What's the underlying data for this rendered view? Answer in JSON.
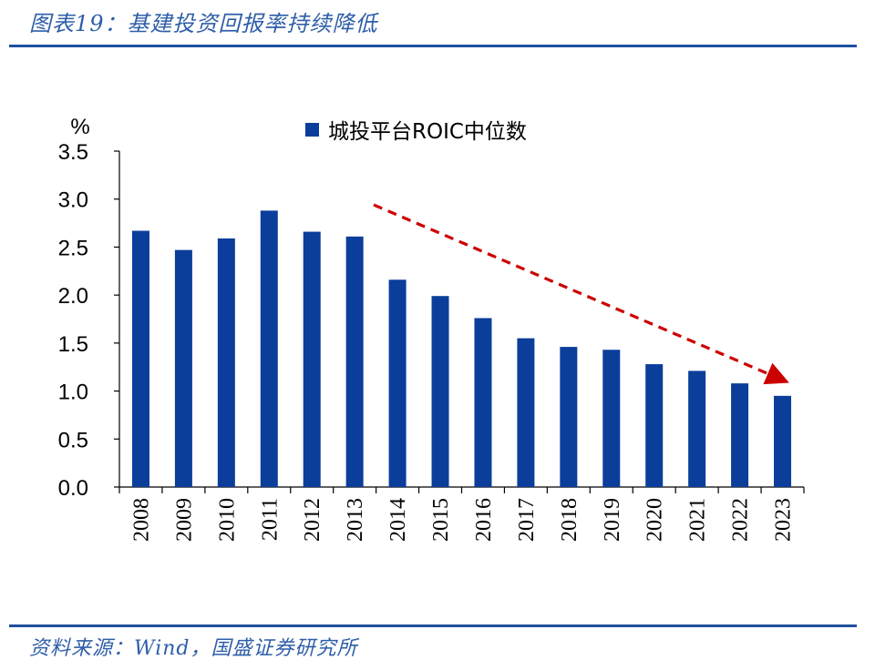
{
  "title": "图表19：基建投资回报率持续降低",
  "source": "资料来源：Wind，国盛证券研究所",
  "colors": {
    "bar": "#0b3d9b",
    "arrow": "#cc0000",
    "accent": "#2e5ea8"
  },
  "chart_data": {
    "type": "bar",
    "ylabel": "%",
    "ylim": [
      0,
      3.5
    ],
    "yticks": [
      "0.0",
      "0.5",
      "1.0",
      "1.5",
      "2.0",
      "2.5",
      "3.0",
      "3.5"
    ],
    "categories": [
      "2008",
      "2009",
      "2010",
      "2011",
      "2012",
      "2013",
      "2014",
      "2015",
      "2016",
      "2017",
      "2018",
      "2019",
      "2020",
      "2021",
      "2022",
      "2023"
    ],
    "series": [
      {
        "name": "城投平台ROIC中位数",
        "values": [
          2.67,
          2.47,
          2.59,
          2.88,
          2.66,
          2.61,
          2.16,
          1.99,
          1.76,
          1.55,
          1.46,
          1.43,
          1.28,
          1.21,
          1.08,
          0.95
        ]
      }
    ],
    "legend_position": "top-center",
    "grid": false,
    "annotation": "dashed red downward trend arrow from 2013 toward 2023"
  }
}
